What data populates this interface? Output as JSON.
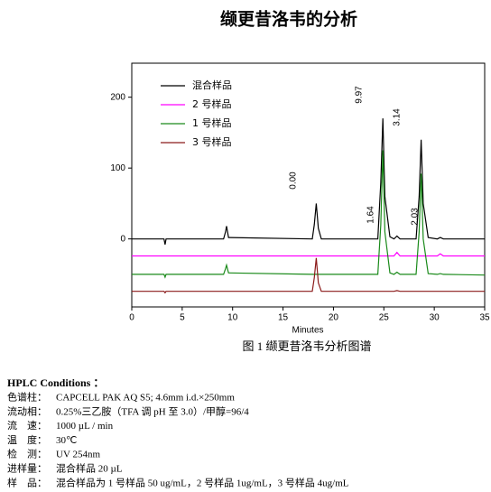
{
  "chart_data": {
    "type": "line",
    "title": "缬更昔洛韦的分析",
    "x_label": "Minutes",
    "x": [
      0,
      3.2,
      3.3,
      3.4,
      9.1,
      9.3,
      9.4,
      9.6,
      17.9,
      18.1,
      18.3,
      18.5,
      18.8,
      24.4,
      24.7,
      24.9,
      25.1,
      25.6,
      26.0,
      26.3,
      26.6,
      28.2,
      28.5,
      28.7,
      28.9,
      29.4,
      30.3,
      30.6,
      30.9,
      35
    ],
    "series": [
      {
        "name": "混合样品",
        "color": "#000000",
        "values": [
          0,
          0,
          -8,
          0,
          0,
          10,
          18,
          2,
          0,
          20,
          50,
          15,
          0,
          0,
          80,
          170,
          60,
          3,
          0,
          4,
          0,
          0,
          60,
          140,
          50,
          2,
          0,
          2,
          0,
          0
        ]
      },
      {
        "name": "2 号样品",
        "color": "#ff00ff",
        "values": [
          -24,
          -24,
          -24,
          -24,
          -24,
          -24,
          -24,
          -24,
          -24,
          -24,
          -24,
          -24,
          -24,
          -24,
          -24,
          -24,
          -24,
          -24,
          -24,
          -19,
          -24,
          -24,
          -24,
          -24,
          -24,
          -24,
          -24,
          -21,
          -24,
          -24
        ]
      },
      {
        "name": "1 号样品",
        "color": "#1a8a1a",
        "values": [
          -50,
          -50,
          -54,
          -50,
          -50,
          -42,
          -37,
          -48,
          -50,
          -50,
          -50,
          -50,
          -50,
          -50,
          20,
          125,
          10,
          -48,
          -50,
          -47,
          -50,
          -50,
          10,
          92,
          0,
          -49,
          -50,
          -49,
          -50,
          -51
        ]
      },
      {
        "name": "3 号样品",
        "color": "#8b1a1a",
        "values": [
          -74,
          -74,
          -76,
          -74,
          -74,
          -74,
          -74,
          -74,
          -74,
          -55,
          -27,
          -62,
          -74,
          -74,
          -74,
          -74,
          -74,
          -74,
          -74,
          -73,
          -74,
          -74,
          -74,
          -74,
          -74,
          -74,
          -74,
          -74,
          -74,
          -74
        ]
      }
    ],
    "annotations": [
      "9.97",
      "3.14",
      "0.00",
      "1.64",
      "2.03"
    ],
    "xlim": [
      0,
      35
    ],
    "xticks": [
      0,
      5,
      10,
      15,
      20,
      25,
      30,
      35
    ],
    "ylim": [
      -96,
      248
    ],
    "yticks": [
      0,
      100,
      200
    ],
    "legend": "upper-left"
  },
  "caption": "图 1  缬更昔洛韦分析图谱",
  "conditions": {
    "title": "HPLC Conditions ：",
    "rows": [
      [
        "色谱柱：",
        "CAPCELL PAK AQ S5; 4.6mm i.d.×250mm"
      ],
      [
        "流动相：",
        "0.25%三乙胺（TFA 调 pH 至 3.0）/甲醇=96/4"
      ],
      [
        "流　速：",
        "1000 µL / min"
      ],
      [
        "温　度：",
        "30℃"
      ],
      [
        "检　测：",
        "UV 254nm"
      ],
      [
        "进样量：",
        "混合样品 20 µL"
      ],
      [
        "样　品：",
        "混合样品为 1 号样品 50 ug/mL，2 号样品 1ug/mL，3 号样品 4ug/mL"
      ]
    ]
  }
}
